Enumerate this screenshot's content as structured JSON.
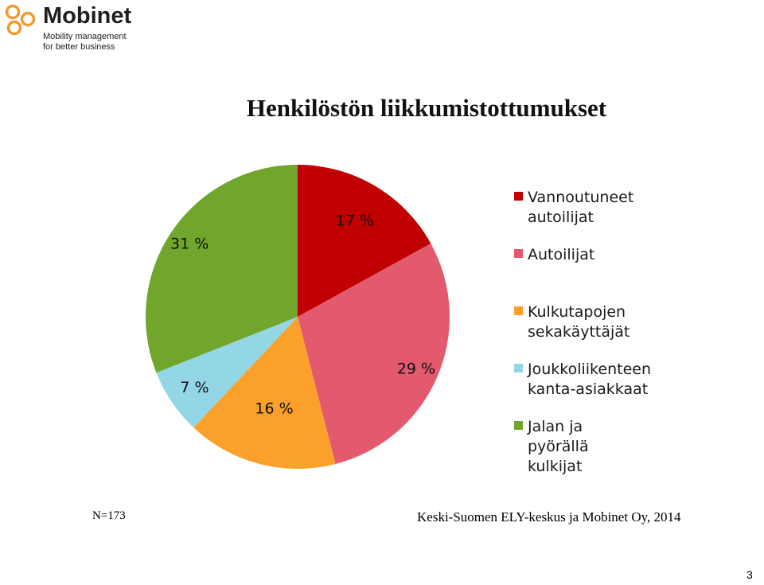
{
  "logo": {
    "name": "Mobinet",
    "tagline_line1": "Mobility management",
    "tagline_line2": "for better business",
    "color": "#f39a2e"
  },
  "footer": {
    "sample_size": "N=173",
    "source": "Keski-Suomen ELY-keskus ja Mobinet Oy, 2014",
    "page_number": "3"
  },
  "chart_data": {
    "type": "pie",
    "title": "Henkilöstön liikkumistottumukset",
    "unit": "%",
    "start_angle_deg": 0,
    "direction": "clockwise",
    "legend_position": "right",
    "slices": [
      {
        "name": "Vannoutuneet autoilijat",
        "value": 17,
        "label": "17 %",
        "color": "#c00000"
      },
      {
        "name": "Autoilijat",
        "value": 29,
        "label": "29 %",
        "color": "#e35a6e"
      },
      {
        "name": "Kulkutapojen sekakäyttäjät",
        "value": 16,
        "label": "16 %",
        "color": "#fba02a"
      },
      {
        "name": "Joukkoliikenteen kanta-asiakkaat",
        "value": 7,
        "label": "7 %",
        "color": "#93d6e5"
      },
      {
        "name": "Jalan ja pyörällä kulkijat",
        "value": 31,
        "label": "31 %",
        "color": "#72a52b"
      }
    ]
  }
}
